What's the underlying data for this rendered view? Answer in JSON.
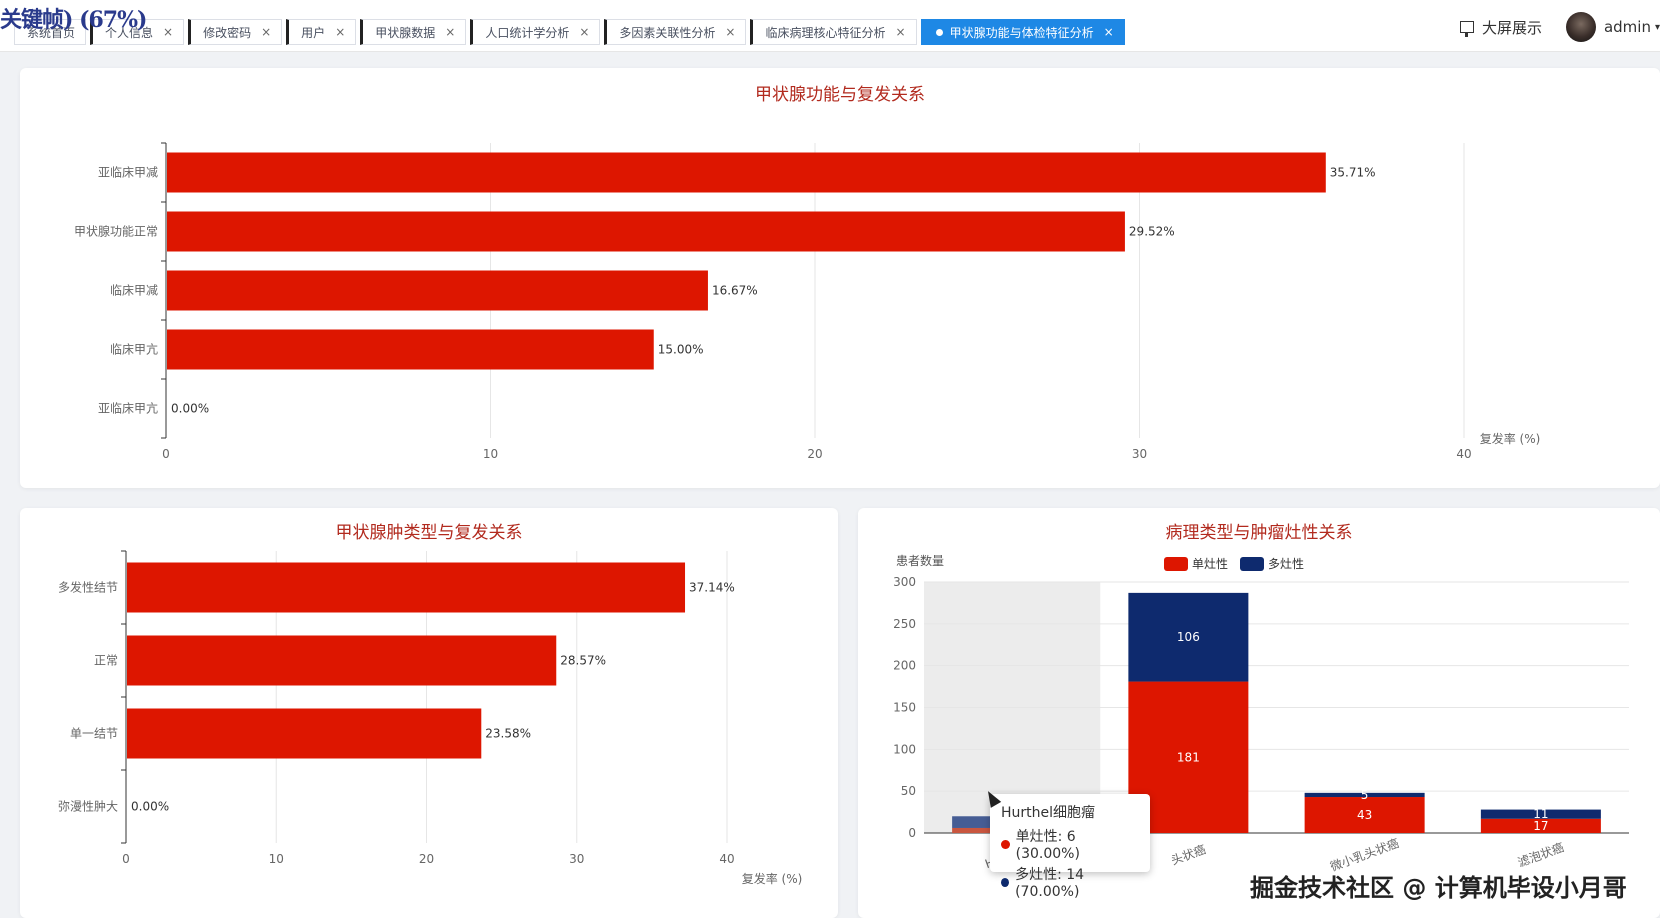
{
  "overlay_title": "关键帧) (67%)",
  "tabs": [
    {
      "label": "系统首页",
      "closable": false
    },
    {
      "label": "个人信息",
      "closable": true
    },
    {
      "label": "修改密码",
      "closable": true
    },
    {
      "label": "用户",
      "closable": true
    },
    {
      "label": "甲状腺数据",
      "closable": true
    },
    {
      "label": "人口统计学分析",
      "closable": true
    },
    {
      "label": "多因素关联性分析",
      "closable": true
    },
    {
      "label": "临床病理核心特征分析",
      "closable": true
    },
    {
      "label": "甲状腺功能与体检特征分析",
      "closable": true,
      "active": true
    }
  ],
  "header": {
    "screen_label": "大屏展示",
    "user_name": "admin"
  },
  "colors": {
    "red": "#dd1600",
    "navy": "#0e2a6e",
    "title": "#b22a1e"
  },
  "chart_data": [
    {
      "type": "bar",
      "orientation": "horizontal",
      "title": "甲状腺功能与复发关系",
      "categories": [
        "亚临床甲减",
        "甲状腺功能正常",
        "临床甲减",
        "临床甲亢",
        "亚临床甲亢"
      ],
      "values": [
        35.71,
        29.52,
        16.67,
        15.0,
        0.0
      ],
      "value_labels": [
        "35.71%",
        "29.52%",
        "16.67%",
        "15.00%",
        "0.00%"
      ],
      "xlabel": "复发率 (%)",
      "xlim": [
        0,
        40
      ],
      "xticks": [
        "0",
        "10",
        "20",
        "30",
        "40"
      ],
      "grid": true
    },
    {
      "type": "bar",
      "orientation": "horizontal",
      "title": "甲状腺肿类型与复发关系",
      "categories": [
        "多发性结节",
        "正常",
        "单一结节",
        "弥漫性肿大"
      ],
      "values": [
        37.14,
        28.57,
        23.58,
        0.0
      ],
      "value_labels": [
        "37.14%",
        "28.57%",
        "23.58%",
        "0.00%"
      ],
      "xlabel": "复发率 (%)",
      "xlim": [
        0,
        40
      ],
      "xticks": [
        "0",
        "10",
        "20",
        "30",
        "40"
      ],
      "grid": true
    },
    {
      "type": "bar",
      "stacked": true,
      "title": "病理类型与肿瘤灶性关系",
      "ylabel": "患者数量",
      "ylim": [
        0,
        300
      ],
      "yticks": [
        "0",
        "50",
        "100",
        "150",
        "200",
        "250",
        "300"
      ],
      "categories": [
        "Hurthel细胞瘤",
        "乳头状癌",
        "微小乳头状癌",
        "滤泡状癌"
      ],
      "xtick_labels": [
        "Hurthel细",
        "头状癌",
        "微小乳头状癌",
        "滤泡状癌"
      ],
      "legend_position": "top-center",
      "series": [
        {
          "name": "单灶性",
          "values": [
            6,
            181,
            43,
            17
          ],
          "labels": [
            "",
            "181",
            "43",
            "17"
          ]
        },
        {
          "name": "多灶性",
          "values": [
            14,
            106,
            5,
            11
          ],
          "labels": [
            "",
            "106",
            "5",
            "11"
          ]
        }
      ],
      "highlighted_index": 0
    }
  ],
  "tooltip": {
    "title": "Hurthel细胞瘤",
    "rows": [
      "单灶性: 6 (30.00%)",
      "多灶性: 14 (70.00%)"
    ]
  },
  "watermark": "掘金技术社区 @ 计算机毕设小月哥"
}
